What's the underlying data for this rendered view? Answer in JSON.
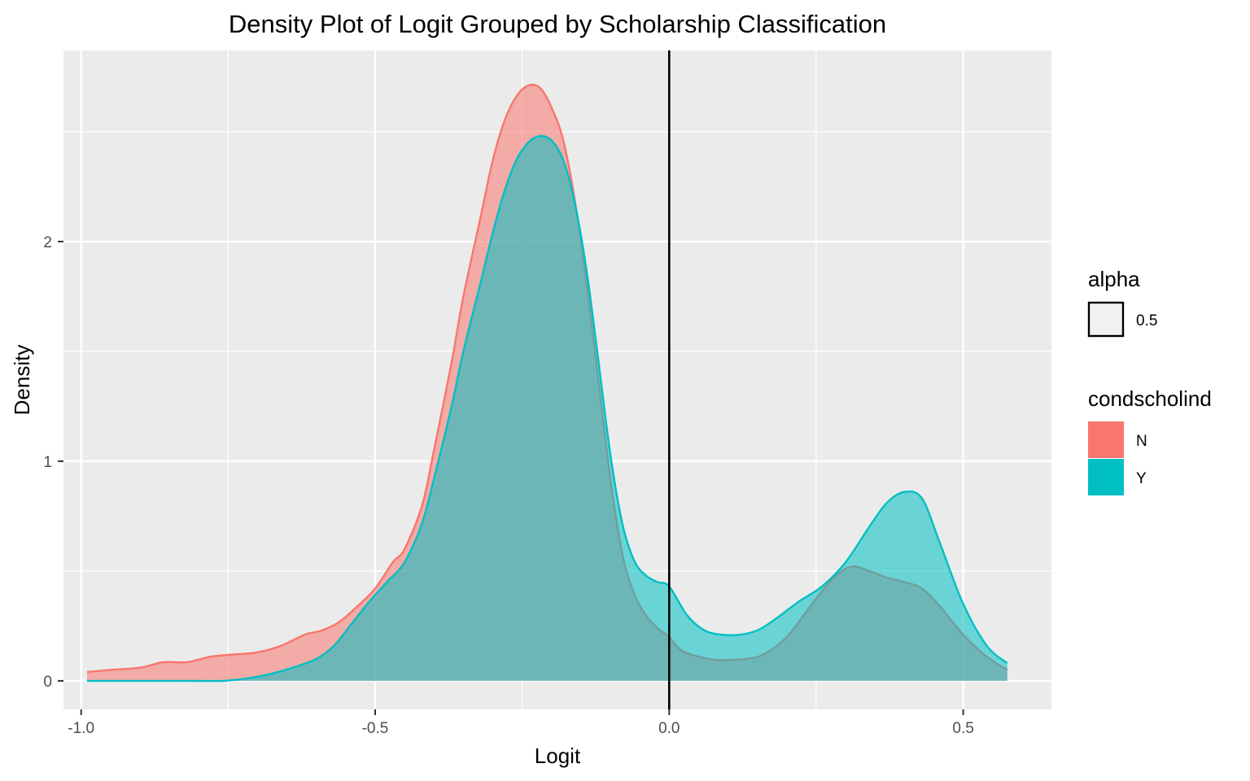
{
  "chart_data": {
    "type": "area",
    "title": "Density Plot of Logit Grouped by Scholarship Classification",
    "xlabel": "Logit",
    "ylabel": "Density",
    "xlim": [
      -1.03,
      0.65
    ],
    "ylim": [
      -0.13,
      2.87
    ],
    "x_ticks": [
      {
        "value": -1.0,
        "label": "-1.0"
      },
      {
        "value": -0.5,
        "label": "-0.5"
      },
      {
        "value": 0.0,
        "label": "0.0"
      },
      {
        "value": 0.5,
        "label": "0.5"
      }
    ],
    "y_ticks": [
      {
        "value": 0,
        "label": "0"
      },
      {
        "value": 1,
        "label": "1"
      },
      {
        "value": 2,
        "label": "2"
      }
    ],
    "vline": 0.0,
    "grid": true,
    "legend_placement": "right",
    "legends": [
      {
        "title": "alpha",
        "entries": [
          {
            "label": "0.5",
            "color": "#f2f2f2"
          }
        ]
      },
      {
        "title": "condscholind",
        "entries": [
          {
            "label": "N",
            "color": "#F8766D"
          },
          {
            "label": "Y",
            "color": "#00BFC4"
          }
        ]
      }
    ],
    "series": [
      {
        "name": "N",
        "color": "#F8766D",
        "x": [
          -0.99,
          -0.95,
          -0.9,
          -0.86,
          -0.82,
          -0.78,
          -0.74,
          -0.7,
          -0.66,
          -0.62,
          -0.59,
          -0.56,
          -0.53,
          -0.5,
          -0.47,
          -0.45,
          -0.42,
          -0.4,
          -0.37,
          -0.35,
          -0.32,
          -0.3,
          -0.28,
          -0.26,
          -0.24,
          -0.22,
          -0.2,
          -0.18,
          -0.16,
          -0.14,
          -0.12,
          -0.1,
          -0.08,
          -0.06,
          -0.04,
          -0.02,
          0.0,
          0.02,
          0.05,
          0.08,
          0.1,
          0.13,
          0.16,
          0.2,
          0.24,
          0.28,
          0.31,
          0.34,
          0.37,
          0.4,
          0.43,
          0.46,
          0.5,
          0.54,
          0.575
        ],
        "y": [
          0.04,
          0.05,
          0.06,
          0.085,
          0.085,
          0.11,
          0.12,
          0.13,
          0.16,
          0.21,
          0.23,
          0.27,
          0.34,
          0.42,
          0.54,
          0.6,
          0.8,
          1.05,
          1.45,
          1.75,
          2.12,
          2.37,
          2.55,
          2.66,
          2.71,
          2.7,
          2.61,
          2.46,
          2.18,
          1.8,
          1.36,
          0.92,
          0.58,
          0.4,
          0.3,
          0.24,
          0.2,
          0.14,
          0.11,
          0.095,
          0.095,
          0.1,
          0.12,
          0.2,
          0.34,
          0.47,
          0.52,
          0.5,
          0.47,
          0.45,
          0.42,
          0.34,
          0.21,
          0.11,
          0.05
        ]
      },
      {
        "name": "Y",
        "color": "#00BFC4",
        "x": [
          -0.99,
          -0.9,
          -0.82,
          -0.76,
          -0.72,
          -0.68,
          -0.64,
          -0.6,
          -0.57,
          -0.54,
          -0.51,
          -0.48,
          -0.45,
          -0.42,
          -0.4,
          -0.37,
          -0.35,
          -0.32,
          -0.3,
          -0.28,
          -0.26,
          -0.24,
          -0.22,
          -0.2,
          -0.18,
          -0.16,
          -0.14,
          -0.12,
          -0.1,
          -0.08,
          -0.06,
          -0.04,
          -0.02,
          0.0,
          0.03,
          0.06,
          0.09,
          0.12,
          0.15,
          0.18,
          0.22,
          0.26,
          0.3,
          0.34,
          0.37,
          0.4,
          0.43,
          0.46,
          0.5,
          0.54,
          0.575
        ],
        "y": [
          0.0,
          0.0,
          0.0,
          0.0,
          0.01,
          0.03,
          0.06,
          0.1,
          0.16,
          0.26,
          0.36,
          0.45,
          0.54,
          0.72,
          0.92,
          1.25,
          1.5,
          1.82,
          2.04,
          2.23,
          2.37,
          2.45,
          2.48,
          2.46,
          2.37,
          2.17,
          1.86,
          1.45,
          1.03,
          0.72,
          0.55,
          0.48,
          0.45,
          0.43,
          0.3,
          0.23,
          0.21,
          0.21,
          0.23,
          0.28,
          0.36,
          0.43,
          0.54,
          0.7,
          0.81,
          0.86,
          0.83,
          0.63,
          0.35,
          0.16,
          0.08
        ]
      }
    ]
  }
}
